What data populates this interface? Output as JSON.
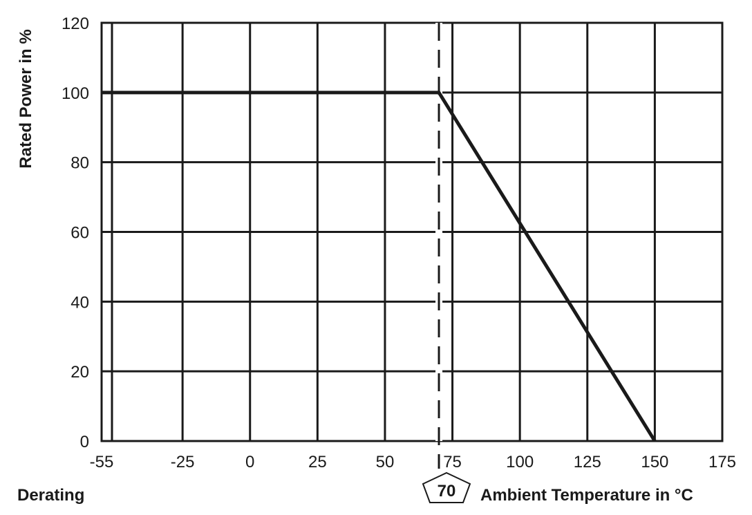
{
  "chart_data": {
    "type": "line",
    "title": "",
    "xlabel": "Ambient Temperature in °C",
    "ylabel": "Rated Power in %",
    "caption": "Derating",
    "xlim": [
      -55,
      175
    ],
    "ylim": [
      0,
      120
    ],
    "x_ticks": [
      -55,
      -25,
      0,
      25,
      50,
      75,
      100,
      125,
      150,
      175
    ],
    "y_ticks": [
      0,
      20,
      40,
      60,
      80,
      100,
      120
    ],
    "x_tick_labels": [
      "-55",
      "-25",
      "0",
      "25",
      "50",
      "75",
      "100",
      "125",
      "150",
      "175"
    ],
    "y_tick_labels": [
      "0",
      "20",
      "40",
      "60",
      "80",
      "100",
      "120"
    ],
    "grid": true,
    "series": [
      {
        "x": [
          -55,
          70,
          150
        ],
        "y": [
          100,
          100,
          0
        ]
      }
    ],
    "annotations": [
      {
        "type": "vline",
        "x": 70,
        "style": "dashed",
        "label": "70"
      }
    ],
    "colors": {
      "line": "#1a1a1a",
      "grid": "#1a1a1a"
    }
  }
}
